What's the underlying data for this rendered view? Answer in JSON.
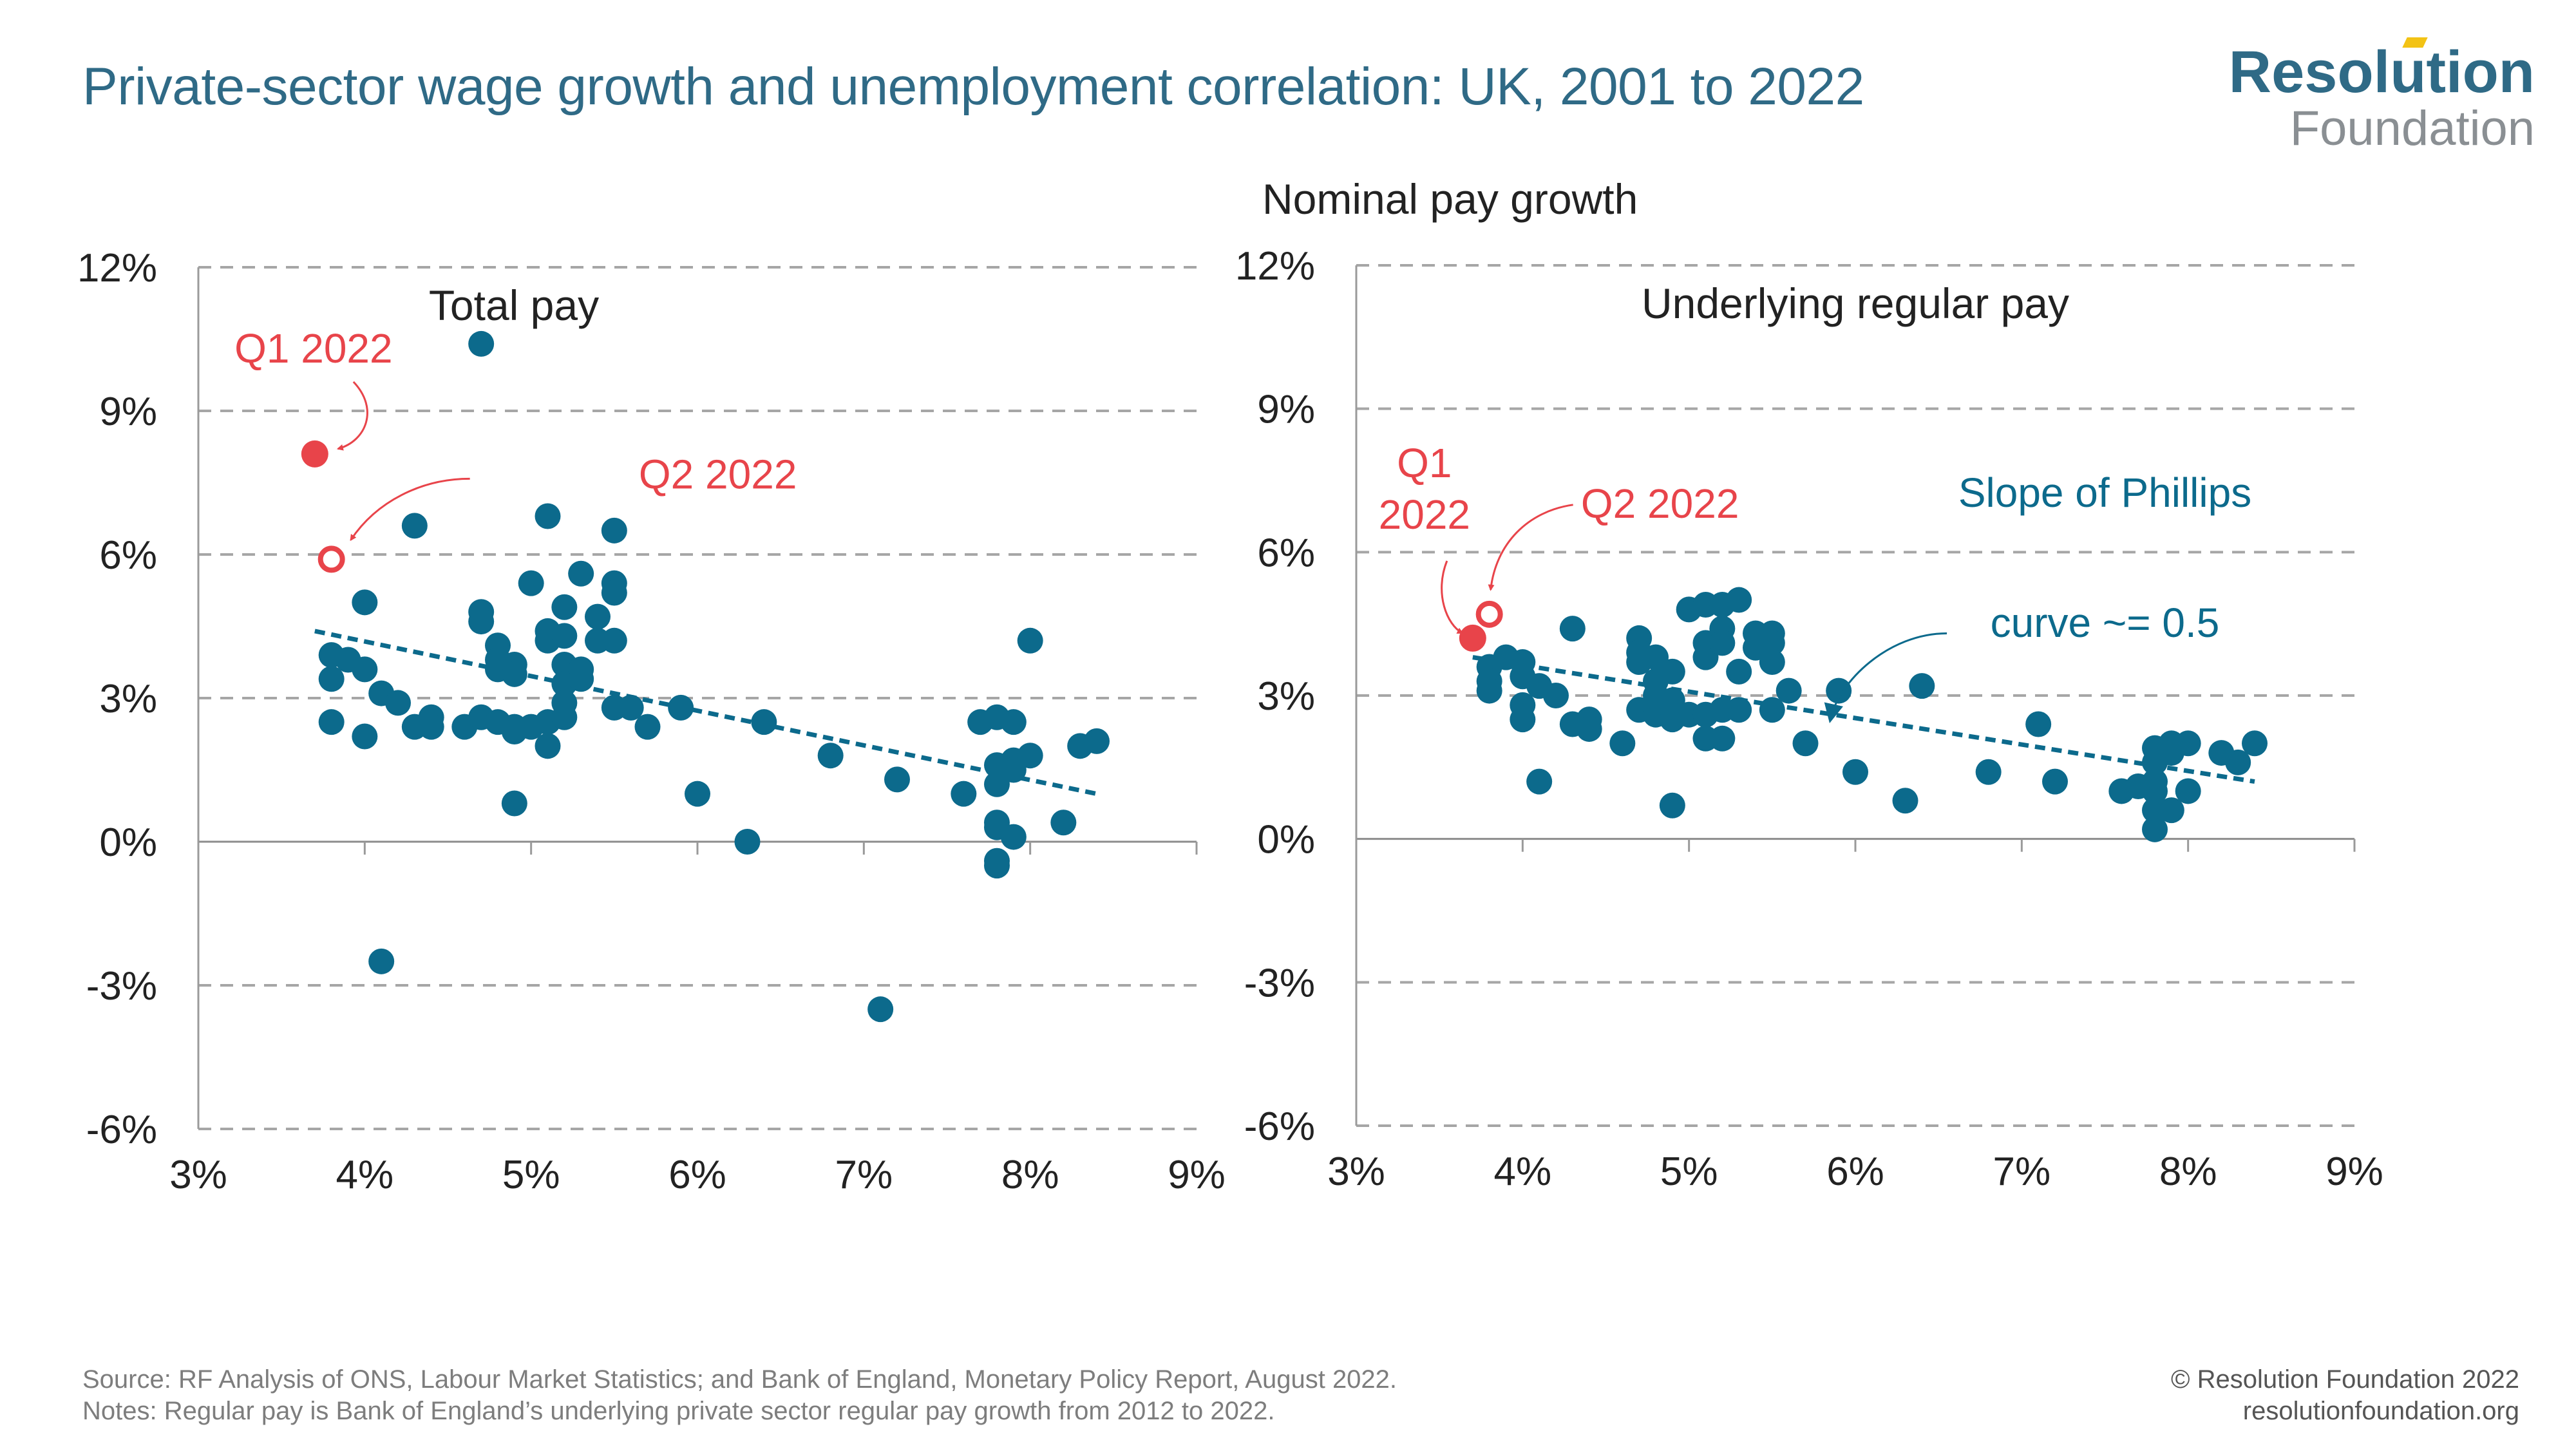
{
  "header": {
    "title": "Private-sector wage growth and unemployment correlation: UK, 2001 to 2022",
    "logo_line1": "Resolution",
    "logo_line2": "Foundation"
  },
  "colors": {
    "title": "#2f6a86",
    "points": "#0c6a8c",
    "highlight": "#e8444a",
    "grid": "#a6a6a6",
    "axis": "#9a9a9a"
  },
  "footer": {
    "source": "Source:  RF Analysis of ONS, Labour Market Statistics; and Bank of England, Monetary Policy Report, August 2022.",
    "notes": "Notes: Regular pay is Bank of England’s underlying private sector regular pay growth from 2012 to 2022.",
    "copyright": "© Resolution Foundation 2022",
    "website": "resolutionfoundation.org"
  },
  "chart_data": [
    {
      "type": "scatter",
      "title": "Total pay",
      "ylabel": "",
      "xlabel": "",
      "xlim": [
        3,
        9
      ],
      "ylim": [
        -6,
        12
      ],
      "x_ticks": [
        "3%",
        "4%",
        "5%",
        "6%",
        "7%",
        "8%",
        "9%"
      ],
      "y_ticks": [
        "-6%",
        "-3%",
        "0%",
        "3%",
        "6%",
        "9%",
        "12%"
      ],
      "grid": "horizontal dashed",
      "trendline": {
        "x": [
          3.7,
          8.4
        ],
        "y": [
          4.4,
          1.0
        ]
      },
      "points": [
        [
          3.8,
          3.9
        ],
        [
          3.8,
          3.4
        ],
        [
          3.8,
          2.5
        ],
        [
          3.9,
          3.8
        ],
        [
          4.0,
          3.6
        ],
        [
          4.0,
          5.0
        ],
        [
          4.0,
          2.2
        ],
        [
          4.1,
          3.1
        ],
        [
          4.1,
          -2.5
        ],
        [
          4.2,
          2.9
        ],
        [
          4.3,
          6.6
        ],
        [
          4.3,
          2.4
        ],
        [
          4.4,
          2.6
        ],
        [
          4.4,
          2.4
        ],
        [
          4.6,
          2.4
        ],
        [
          4.7,
          10.4
        ],
        [
          4.7,
          4.8
        ],
        [
          4.7,
          4.6
        ],
        [
          4.7,
          2.6
        ],
        [
          4.8,
          4.1
        ],
        [
          4.8,
          3.8
        ],
        [
          4.8,
          3.6
        ],
        [
          4.8,
          2.5
        ],
        [
          4.9,
          3.7
        ],
        [
          4.9,
          3.5
        ],
        [
          4.9,
          2.4
        ],
        [
          4.9,
          2.3
        ],
        [
          4.9,
          0.8
        ],
        [
          5.0,
          5.4
        ],
        [
          5.0,
          2.4
        ],
        [
          5.1,
          6.8
        ],
        [
          5.1,
          4.4
        ],
        [
          5.1,
          4.2
        ],
        [
          5.1,
          2.5
        ],
        [
          5.1,
          2.0
        ],
        [
          5.2,
          4.9
        ],
        [
          5.2,
          4.3
        ],
        [
          5.2,
          3.7
        ],
        [
          5.2,
          3.3
        ],
        [
          5.2,
          2.9
        ],
        [
          5.2,
          2.6
        ],
        [
          5.3,
          5.6
        ],
        [
          5.3,
          3.6
        ],
        [
          5.3,
          3.4
        ],
        [
          5.4,
          4.7
        ],
        [
          5.4,
          4.2
        ],
        [
          5.5,
          6.5
        ],
        [
          5.5,
          5.4
        ],
        [
          5.5,
          5.2
        ],
        [
          5.5,
          4.2
        ],
        [
          5.5,
          2.8
        ],
        [
          5.6,
          2.8
        ],
        [
          5.7,
          2.4
        ],
        [
          5.9,
          2.8
        ],
        [
          6.0,
          1.0
        ],
        [
          6.3,
          0.0
        ],
        [
          6.4,
          2.5
        ],
        [
          6.8,
          1.8
        ],
        [
          7.1,
          -3.5
        ],
        [
          7.2,
          1.3
        ],
        [
          7.6,
          1.0
        ],
        [
          7.7,
          2.5
        ],
        [
          7.8,
          2.6
        ],
        [
          7.8,
          1.6
        ],
        [
          7.8,
          1.2
        ],
        [
          7.8,
          0.4
        ],
        [
          7.8,
          0.3
        ],
        [
          7.8,
          -0.4
        ],
        [
          7.8,
          -0.5
        ],
        [
          7.9,
          2.5
        ],
        [
          7.9,
          1.7
        ],
        [
          7.9,
          1.5
        ],
        [
          7.9,
          0.1
        ],
        [
          8.0,
          4.2
        ],
        [
          8.0,
          1.8
        ],
        [
          8.2,
          0.4
        ],
        [
          8.3,
          2.0
        ],
        [
          8.4,
          2.1
        ]
      ],
      "highlights": [
        {
          "label": "Q1 2022",
          "x": 3.7,
          "y": 8.1,
          "style": "filled"
        },
        {
          "label": "Q2 2022",
          "x": 3.8,
          "y": 5.9,
          "style": "hollow"
        }
      ]
    },
    {
      "type": "scatter",
      "title": "Underlying regular pay",
      "ylabel": "Nominal pay growth",
      "xlabel": "",
      "xlim": [
        3,
        9
      ],
      "ylim": [
        -6,
        12
      ],
      "x_ticks": [
        "3%",
        "4%",
        "5%",
        "6%",
        "7%",
        "8%",
        "9%"
      ],
      "y_ticks": [
        "-6%",
        "-3%",
        "0%",
        "3%",
        "6%",
        "9%",
        "12%"
      ],
      "grid": "horizontal dashed",
      "trendline": {
        "x": [
          3.7,
          8.4
        ],
        "y": [
          3.8,
          1.2
        ]
      },
      "trendline_annotation": "Slope of Phillips curve ~= 0.5",
      "points": [
        [
          3.8,
          3.6
        ],
        [
          3.8,
          3.3
        ],
        [
          3.8,
          3.1
        ],
        [
          3.9,
          3.8
        ],
        [
          4.0,
          3.7
        ],
        [
          4.0,
          3.4
        ],
        [
          4.0,
          2.8
        ],
        [
          4.0,
          2.5
        ],
        [
          4.1,
          3.2
        ],
        [
          4.1,
          1.2
        ],
        [
          4.2,
          3.0
        ],
        [
          4.3,
          4.4
        ],
        [
          4.3,
          2.4
        ],
        [
          4.4,
          2.5
        ],
        [
          4.4,
          2.3
        ],
        [
          4.6,
          2.0
        ],
        [
          4.7,
          4.2
        ],
        [
          4.7,
          3.9
        ],
        [
          4.7,
          3.7
        ],
        [
          4.7,
          2.7
        ],
        [
          4.8,
          3.8
        ],
        [
          4.8,
          3.3
        ],
        [
          4.8,
          3.0
        ],
        [
          4.8,
          2.7
        ],
        [
          4.8,
          2.6
        ],
        [
          4.9,
          3.5
        ],
        [
          4.9,
          2.9
        ],
        [
          4.9,
          2.7
        ],
        [
          4.9,
          2.5
        ],
        [
          4.9,
          0.7
        ],
        [
          5.0,
          4.8
        ],
        [
          5.0,
          2.6
        ],
        [
          5.1,
          4.9
        ],
        [
          5.1,
          4.1
        ],
        [
          5.1,
          3.8
        ],
        [
          5.1,
          2.6
        ],
        [
          5.1,
          2.1
        ],
        [
          5.2,
          4.9
        ],
        [
          5.2,
          4.4
        ],
        [
          5.2,
          4.1
        ],
        [
          5.2,
          2.7
        ],
        [
          5.2,
          2.1
        ],
        [
          5.3,
          5.0
        ],
        [
          5.3,
          3.5
        ],
        [
          5.3,
          2.7
        ],
        [
          5.4,
          4.3
        ],
        [
          5.4,
          4.0
        ],
        [
          5.5,
          4.3
        ],
        [
          5.5,
          4.1
        ],
        [
          5.5,
          3.7
        ],
        [
          5.5,
          2.7
        ],
        [
          5.6,
          3.1
        ],
        [
          5.7,
          2.0
        ],
        [
          5.9,
          3.1
        ],
        [
          6.0,
          1.4
        ],
        [
          6.3,
          0.8
        ],
        [
          6.4,
          3.2
        ],
        [
          6.8,
          1.4
        ],
        [
          7.1,
          2.4
        ],
        [
          7.2,
          1.2
        ],
        [
          7.6,
          1.0
        ],
        [
          7.7,
          1.1
        ],
        [
          7.8,
          1.9
        ],
        [
          7.8,
          1.6
        ],
        [
          7.8,
          1.2
        ],
        [
          7.8,
          1.0
        ],
        [
          7.8,
          0.6
        ],
        [
          7.8,
          0.2
        ],
        [
          7.9,
          2.0
        ],
        [
          7.9,
          1.8
        ],
        [
          7.9,
          0.6
        ],
        [
          8.0,
          2.0
        ],
        [
          8.0,
          1.0
        ],
        [
          8.2,
          1.8
        ],
        [
          8.3,
          1.6
        ],
        [
          8.4,
          2.0
        ]
      ],
      "highlights": [
        {
          "label": "Q1 2022",
          "label_lines": [
            "Q1",
            "2022"
          ],
          "x": 3.7,
          "y": 4.2,
          "style": "filled"
        },
        {
          "label": "Q2 2022",
          "x": 3.8,
          "y": 4.7,
          "style": "hollow"
        }
      ]
    }
  ]
}
